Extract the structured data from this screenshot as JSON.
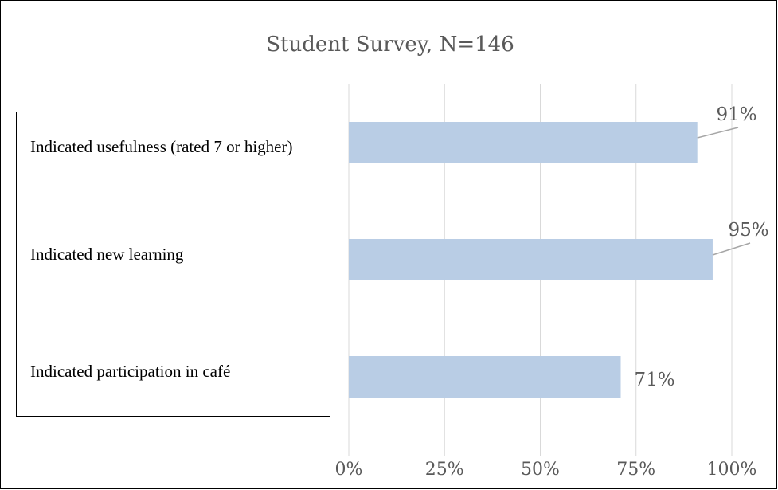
{
  "chart_data": {
    "type": "bar",
    "orientation": "horizontal",
    "title": "Student Survey, N=146",
    "categories": [
      "Indicated usefulness (rated 7 or higher)",
      "Indicated new learning",
      "Indicated participation in café"
    ],
    "values": [
      91,
      95,
      71
    ],
    "value_labels": [
      "91%",
      "95%",
      "71%"
    ],
    "color": "#b9cde5",
    "xlim": [
      0,
      100
    ],
    "xticks": [
      {
        "value": 0,
        "label": "0%"
      },
      {
        "value": 25,
        "label": "25%"
      },
      {
        "value": 50,
        "label": "50%"
      },
      {
        "value": 75,
        "label": "75%"
      },
      {
        "value": 100,
        "label": "100%"
      }
    ],
    "grid": true
  }
}
